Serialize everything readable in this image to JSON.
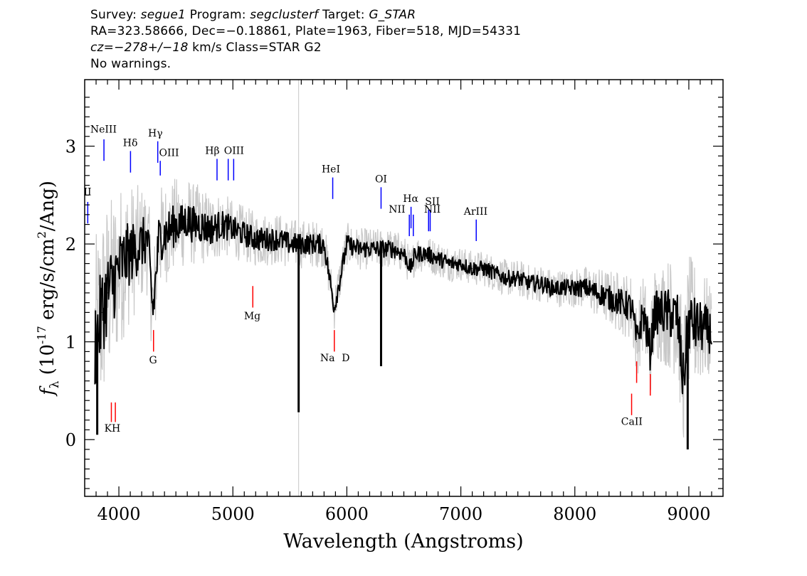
{
  "header": {
    "line1": {
      "survey_label": "Survey: ",
      "survey_value": "segue1",
      "program_label": " Program: ",
      "program_value": "segclusterf",
      "target_label": " Target: ",
      "target_value": "G_STAR"
    },
    "line2": "RA=323.58666, Dec=−0.18861, Plate=1963, Fiber=518, MJD=54331",
    "line3": {
      "cz_label": "cz=",
      "cz_value": "−278+/−18",
      "cz_tail": " km/s Class=STAR G2"
    },
    "line4": "No warnings."
  },
  "chart_data": {
    "type": "line",
    "xlabel": "Wavelength (Angstroms)",
    "ylabel": "f_λ (10^-17 erg/s/cm^2/Ang)",
    "xlim": [
      3700,
      9300
    ],
    "ylim": [
      -0.58,
      3.68
    ],
    "x_ticks": [
      4000,
      5000,
      6000,
      7000,
      8000,
      9000
    ],
    "y_ticks": [
      0,
      1,
      2,
      3
    ],
    "grid": false,
    "colors": {
      "flux": "#000000",
      "noise_band": "#c8c8c8",
      "emission_lines": "#0000ff",
      "absorption_lines": "#ff0000"
    },
    "series": [
      {
        "role": "flux",
        "x": [
          3800,
          3850,
          3900,
          3950,
          4000,
          4050,
          4100,
          4150,
          4200,
          4250,
          4300,
          4350,
          4400,
          4450,
          4500,
          4550,
          4600,
          4650,
          4700,
          4800,
          4900,
          5000,
          5100,
          5200,
          5300,
          5400,
          5500,
          5600,
          5700,
          5800,
          5890,
          6000,
          6100,
          6200,
          6300,
          6400,
          6500,
          6560,
          6600,
          6700,
          6800,
          6900,
          7000,
          7100,
          7200,
          7300,
          7400,
          7500,
          7600,
          7700,
          7800,
          7900,
          8000,
          8100,
          8200,
          8300,
          8400,
          8500,
          8542,
          8600,
          8662,
          8700,
          8800,
          8900,
          8950,
          9000,
          9100,
          9200
        ],
        "y": [
          1.0,
          1.3,
          1.5,
          1.6,
          1.75,
          1.85,
          1.9,
          1.95,
          2.0,
          2.05,
          1.3,
          2.05,
          2.1,
          2.15,
          2.2,
          2.2,
          2.25,
          2.2,
          2.2,
          2.15,
          2.2,
          2.15,
          2.1,
          2.05,
          2.05,
          2.05,
          2.0,
          2.0,
          2.0,
          2.0,
          1.35,
          2.0,
          1.95,
          1.95,
          1.95,
          1.95,
          1.9,
          1.75,
          1.9,
          1.9,
          1.85,
          1.8,
          1.8,
          1.75,
          1.75,
          1.7,
          1.65,
          1.65,
          1.6,
          1.6,
          1.55,
          1.55,
          1.55,
          1.55,
          1.5,
          1.45,
          1.4,
          1.35,
          1.0,
          1.3,
          0.9,
          1.3,
          1.3,
          1.25,
          0.6,
          1.2,
          1.15,
          1.1
        ]
      }
    ],
    "spikes": [
      {
        "x": 5577,
        "y": 0.28
      },
      {
        "x": 6300,
        "y": 0.75
      },
      {
        "x": 3810,
        "y": 0.05
      },
      {
        "x": 8990,
        "y": -0.1
      }
    ],
    "noise_band_halfwidth": [
      {
        "x": 3800,
        "w": 1.1
      },
      {
        "x": 4200,
        "w": 0.6
      },
      {
        "x": 5000,
        "w": 0.3
      },
      {
        "x": 6000,
        "w": 0.22
      },
      {
        "x": 7000,
        "w": 0.18
      },
      {
        "x": 8000,
        "w": 0.2
      },
      {
        "x": 8500,
        "w": 0.35
      },
      {
        "x": 9000,
        "w": 0.7
      },
      {
        "x": 9200,
        "w": 0.5
      }
    ],
    "emission_line_labels": [
      {
        "name": "NeIII",
        "x": 3869,
        "y_top": 3.07,
        "y_bot": 2.85
      },
      {
        "name": "Hδ",
        "x": 4102,
        "y_top": 2.95,
        "y_bot": 2.73
      },
      {
        "name": "Hγ",
        "x": 4341,
        "y_top": 3.05,
        "y_bot": 2.83
      },
      {
        "name": "OIII",
        "x": 4363,
        "y_top": 2.85,
        "y_bot": 2.7
      },
      {
        "name": "Hβ",
        "x": 4861,
        "y_top": 2.87,
        "y_bot": 2.65
      },
      {
        "name": "OIII",
        "x": 4959,
        "y_top": 2.87,
        "y_bot": 2.65
      },
      {
        "name": "OIII",
        "x": 5007,
        "y_top": 2.87,
        "y_bot": 2.65
      },
      {
        "name": "HeI",
        "x": 5876,
        "y_top": 2.68,
        "y_bot": 2.46
      },
      {
        "name": "OI",
        "x": 6300,
        "y_top": 2.58,
        "y_bot": 2.36
      },
      {
        "name": "NII",
        "x": 6548,
        "y_top": 2.3,
        "y_bot": 2.08
      },
      {
        "name": "Hα",
        "x": 6563,
        "y_top": 2.38,
        "y_bot": 2.16
      },
      {
        "name": "NII",
        "x": 6583,
        "y_top": 2.3,
        "y_bot": 2.08
      },
      {
        "name": "SII",
        "x": 6717,
        "y_top": 2.35,
        "y_bot": 2.13
      },
      {
        "name": "SII",
        "x": 6731,
        "y_top": 2.35,
        "y_bot": 2.13
      },
      {
        "name": "ArIII",
        "x": 7135,
        "y_top": 2.25,
        "y_bot": 2.03
      },
      {
        "name": "II",
        "x": 3727,
        "y_top": 2.43,
        "y_bot": 2.21
      }
    ],
    "emission_label_text": [
      {
        "text": "NeIII",
        "x": 3865,
        "y": 3.14
      },
      {
        "text": "Hδ",
        "x": 4100,
        "y": 3.0
      },
      {
        "text": "Hγ",
        "x": 4320,
        "y": 3.1
      },
      {
        "text": "OIII",
        "x": 4440,
        "y": 2.9
      },
      {
        "text": "Hβ",
        "x": 4820,
        "y": 2.92
      },
      {
        "text": "OIII",
        "x": 5010,
        "y": 2.92
      },
      {
        "text": "HeI",
        "x": 5860,
        "y": 2.73
      },
      {
        "text": "OI",
        "x": 6300,
        "y": 2.63
      },
      {
        "text": "NII",
        "x": 6440,
        "y": 2.32
      },
      {
        "text": "Hα",
        "x": 6560,
        "y": 2.43
      },
      {
        "text": "SII",
        "x": 6750,
        "y": 2.4
      },
      {
        "text": "NII",
        "x": 6750,
        "y": 2.32
      },
      {
        "text": "ArIII",
        "x": 7130,
        "y": 2.3
      },
      {
        "text": "II",
        "x": 3725,
        "y": 2.5
      }
    ],
    "absorption_line_labels": [
      {
        "x": 3934,
        "y_top": 0.38,
        "y_bot": 0.18
      },
      {
        "x": 3969,
        "y_top": 0.38,
        "y_bot": 0.18
      },
      {
        "x": 4304,
        "y_top": 1.12,
        "y_bot": 0.9
      },
      {
        "x": 5175,
        "y_top": 1.57,
        "y_bot": 1.35
      },
      {
        "x": 5890,
        "y_top": 1.12,
        "y_bot": 0.9
      },
      {
        "x": 8498,
        "y_top": 0.47,
        "y_bot": 0.25
      },
      {
        "x": 8542,
        "y_top": 0.8,
        "y_bot": 0.58
      },
      {
        "x": 8662,
        "y_top": 0.67,
        "y_bot": 0.45
      }
    ],
    "absorption_label_text": [
      {
        "text": "K",
        "x": 3905,
        "y": 0.08
      },
      {
        "text": "H",
        "x": 3975,
        "y": 0.08
      },
      {
        "text": "G",
        "x": 4300,
        "y": 0.78
      },
      {
        "text": "Mg",
        "x": 5170,
        "y": 1.23
      },
      {
        "text": "Na",
        "x": 5830,
        "y": 0.8
      },
      {
        "text": "D",
        "x": 5990,
        "y": 0.8
      },
      {
        "text": "CaII",
        "x": 8500,
        "y": 0.15
      }
    ]
  }
}
